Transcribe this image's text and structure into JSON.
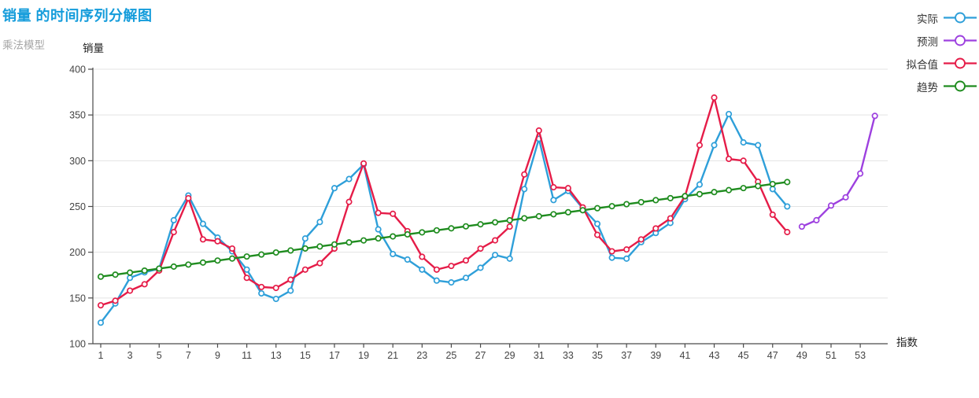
{
  "header": {
    "title": "销量 的时间序列分解图",
    "subtitle": "乘法模型"
  },
  "axes": {
    "y_title": "销量",
    "x_title": "指数"
  },
  "colors": {
    "title_blue": "#149CDB",
    "actual": "#2E9FD9",
    "forecast": "#9D40DF",
    "fitted": "#E51C48",
    "trend": "#1F8C1F",
    "grid": "#E3E3E3",
    "axis": "#4A4A4A",
    "subtitle_gray": "#A6A6A6"
  },
  "legend": [
    {
      "key": "actual",
      "label": "实际"
    },
    {
      "key": "forecast",
      "label": "预测"
    },
    {
      "key": "fitted",
      "label": "拟合值"
    },
    {
      "key": "trend",
      "label": "趋势"
    }
  ],
  "chart_data": {
    "type": "line",
    "title": "销量 的时间序列分解图",
    "subtitle": "乘法模型",
    "xlabel": "指数",
    "ylabel": "销量",
    "ylim": [
      100,
      400
    ],
    "xlim": [
      1,
      55
    ],
    "y_ticks": [
      100,
      150,
      200,
      250,
      300,
      350,
      400
    ],
    "x_tick_labels": [
      1,
      3,
      5,
      7,
      9,
      11,
      13,
      15,
      17,
      19,
      21,
      23,
      25,
      27,
      29,
      31,
      33,
      35,
      37,
      39,
      41,
      43,
      45,
      47,
      49,
      51,
      53
    ],
    "grid": true,
    "legend_position": "top-right",
    "series": [
      {
        "key": "actual",
        "name": "实际",
        "color": "#2E9FD9",
        "x": [
          1,
          2,
          3,
          4,
          5,
          6,
          7,
          8,
          9,
          10,
          11,
          12,
          13,
          14,
          15,
          16,
          17,
          18,
          19,
          20,
          21,
          22,
          23,
          24,
          25,
          26,
          27,
          28,
          29,
          30,
          31,
          32,
          33,
          34,
          35,
          36,
          37,
          38,
          39,
          40,
          41,
          42,
          43,
          44,
          45,
          46,
          47,
          48
        ],
        "values": [
          123,
          144,
          172,
          178,
          182,
          235,
          262,
          231,
          216,
          201,
          181,
          155,
          149,
          158,
          215,
          233,
          270,
          280,
          296,
          225,
          198,
          192,
          181,
          169,
          167,
          172,
          183,
          197,
          193,
          269,
          324,
          257,
          267,
          248,
          231,
          194,
          193,
          211,
          221,
          232,
          258,
          274,
          317,
          351,
          320,
          317,
          269,
          250
        ]
      },
      {
        "key": "forecast",
        "name": "预测",
        "color": "#9D40DF",
        "x": [
          49,
          50,
          51,
          52,
          53,
          54
        ],
        "values": [
          228,
          235,
          251,
          260,
          286,
          349
        ]
      },
      {
        "key": "fitted",
        "name": "拟合值",
        "color": "#E51C48",
        "x": [
          1,
          2,
          3,
          4,
          5,
          6,
          7,
          8,
          9,
          10,
          11,
          12,
          13,
          14,
          15,
          16,
          17,
          18,
          19,
          20,
          21,
          22,
          23,
          24,
          25,
          26,
          27,
          28,
          29,
          30,
          31,
          32,
          33,
          34,
          35,
          36,
          37,
          38,
          39,
          40,
          41,
          42,
          43,
          44,
          45,
          46,
          47,
          48
        ],
        "values": [
          142,
          147,
          158,
          165,
          180,
          222,
          259,
          214,
          212,
          204,
          172,
          162,
          161,
          170,
          181,
          188,
          204,
          255,
          297,
          243,
          242,
          223,
          195,
          181,
          185,
          191,
          204,
          213,
          228,
          285,
          333,
          271,
          270,
          249,
          219,
          201,
          203,
          214,
          226,
          237,
          261,
          317,
          369,
          302,
          300,
          277,
          241,
          222
        ]
      },
      {
        "key": "trend",
        "name": "趋势",
        "color": "#1F8C1F",
        "x": [
          1,
          2,
          3,
          4,
          5,
          6,
          7,
          8,
          9,
          10,
          11,
          12,
          13,
          14,
          15,
          16,
          17,
          18,
          19,
          20,
          21,
          22,
          23,
          24,
          25,
          26,
          27,
          28,
          29,
          30,
          31,
          32,
          33,
          34,
          35,
          36,
          37,
          38,
          39,
          40,
          41,
          42,
          43,
          44,
          45,
          46,
          47,
          48
        ],
        "values": [
          173.3,
          175.5,
          177.7,
          179.9,
          182.1,
          184.3,
          186.5,
          188.7,
          190.9,
          193.1,
          195.3,
          197.5,
          199.7,
          201.9,
          204.1,
          206.3,
          208.5,
          210.7,
          212.9,
          215.1,
          217.3,
          219.5,
          221.7,
          223.9,
          226.1,
          228.3,
          230.5,
          232.7,
          234.9,
          237.1,
          239.3,
          241.5,
          243.7,
          245.9,
          248.1,
          250.3,
          252.5,
          254.7,
          256.9,
          259.1,
          261.3,
          263.5,
          265.7,
          267.9,
          270.1,
          272.3,
          274.5,
          276.7
        ]
      }
    ]
  }
}
